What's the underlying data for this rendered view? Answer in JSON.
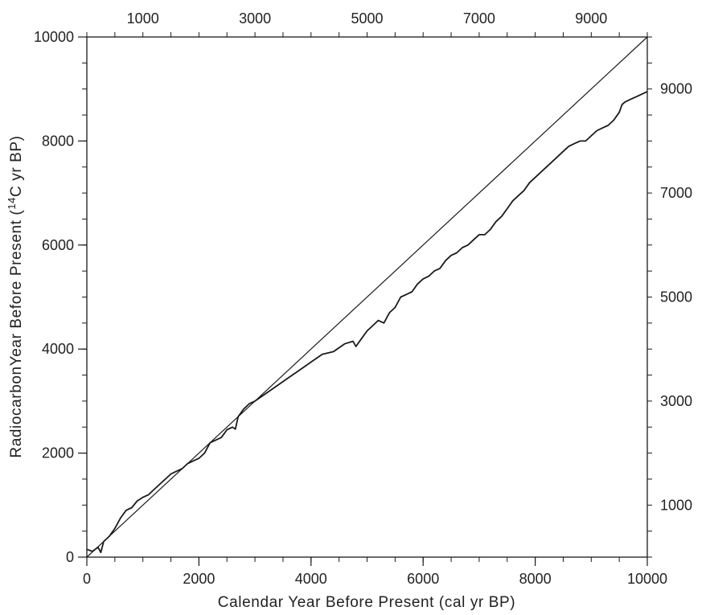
{
  "chart_data": {
    "type": "line",
    "title": "",
    "xlabel": "Calendar Year Before Present (cal yr BP)",
    "ylabel": {
      "before": "RadiocarbonYear Before Present (",
      "superscript": "14",
      "after": "C yr BP)"
    },
    "xlim": [
      0,
      10000
    ],
    "ylim": [
      0,
      10000
    ],
    "grid": false,
    "legend": "none",
    "axes": {
      "bottom": {
        "ticks": [
          "0",
          "2000",
          "4000",
          "6000",
          "8000",
          "10000"
        ]
      },
      "left": {
        "ticks": [
          "0",
          "2000",
          "4000",
          "6000",
          "8000",
          "10000"
        ]
      },
      "top": {
        "ticks": [
          "1000",
          "3000",
          "5000",
          "7000",
          "9000"
        ]
      },
      "right": {
        "ticks": [
          "1000",
          "3000",
          "5000",
          "7000",
          "9000"
        ]
      }
    },
    "series": [
      {
        "style": "reference-1:1",
        "color": "#1a1a1a",
        "x": [
          0,
          10000
        ],
        "y": [
          0,
          10000
        ]
      },
      {
        "style": "radiocarbon-calibration",
        "color": "#1a1a1a",
        "x": [
          0,
          100,
          200,
          250,
          300,
          400,
          500,
          600,
          700,
          800,
          900,
          1000,
          1100,
          1200,
          1300,
          1400,
          1500,
          1600,
          1700,
          1800,
          1900,
          2000,
          2100,
          2200,
          2300,
          2400,
          2500,
          2600,
          2650,
          2700,
          2800,
          2900,
          3000,
          3200,
          3400,
          3600,
          3800,
          4000,
          4200,
          4400,
          4600,
          4750,
          4800,
          4900,
          5000,
          5100,
          5200,
          5300,
          5400,
          5500,
          5600,
          5700,
          5800,
          5900,
          6000,
          6100,
          6200,
          6300,
          6400,
          6500,
          6600,
          6700,
          6800,
          6900,
          7000,
          7100,
          7200,
          7300,
          7400,
          7500,
          7600,
          7700,
          7800,
          7900,
          8000,
          8100,
          8200,
          8300,
          8400,
          8500,
          8600,
          8700,
          8800,
          8900,
          9000,
          9100,
          9200,
          9300,
          9400,
          9500,
          9550,
          9600,
          9700,
          9800,
          9900,
          10000
        ],
        "y": [
          150,
          110,
          190,
          90,
          300,
          400,
          550,
          750,
          900,
          950,
          1080,
          1150,
          1200,
          1300,
          1400,
          1500,
          1600,
          1650,
          1700,
          1800,
          1850,
          1900,
          2000,
          2200,
          2250,
          2300,
          2450,
          2500,
          2460,
          2700,
          2850,
          2950,
          3000,
          3150,
          3300,
          3450,
          3600,
          3750,
          3900,
          3950,
          4100,
          4150,
          4050,
          4200,
          4350,
          4450,
          4550,
          4500,
          4700,
          4800,
          5000,
          5050,
          5100,
          5250,
          5350,
          5400,
          5500,
          5550,
          5700,
          5800,
          5850,
          5950,
          6000,
          6100,
          6200,
          6200,
          6300,
          6450,
          6550,
          6700,
          6850,
          6950,
          7050,
          7200,
          7300,
          7400,
          7500,
          7600,
          7700,
          7800,
          7900,
          7950,
          8000,
          8000,
          8100,
          8200,
          8250,
          8300,
          8400,
          8550,
          8700,
          8750,
          8800,
          8850,
          8900,
          8950
        ]
      }
    ]
  }
}
